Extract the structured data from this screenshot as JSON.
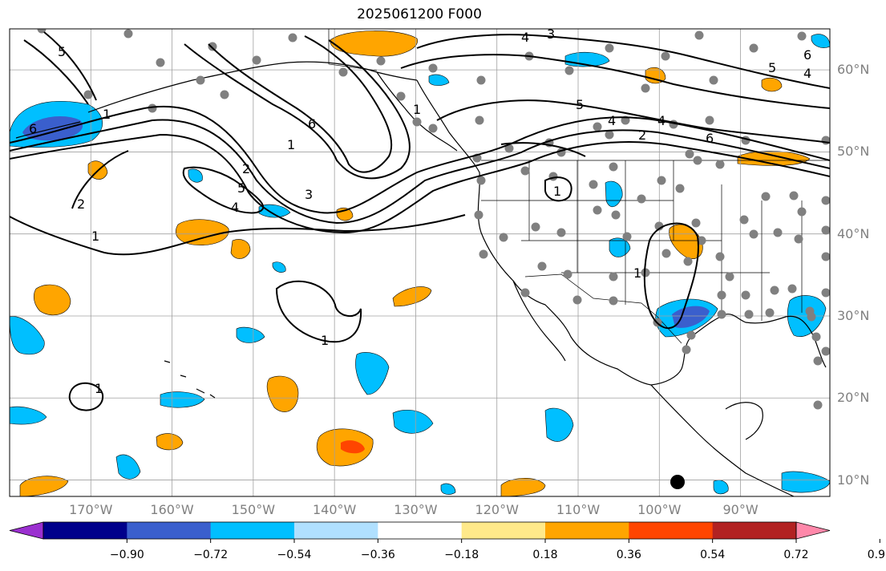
{
  "title": "2025061200 F000",
  "map": {
    "lon_range": [
      -180,
      -79
    ],
    "lat_range": [
      8,
      65
    ],
    "longitude_labels": [
      "170°W",
      "160°W",
      "150°W",
      "140°W",
      "130°W",
      "120°W",
      "110°W",
      "100°W",
      "90°W"
    ],
    "longitude_values": [
      -170,
      -160,
      -150,
      -140,
      -130,
      -120,
      -110,
      -100,
      -90
    ],
    "latitude_labels": [
      "60°N",
      "50°N",
      "40°N",
      "30°N",
      "20°N",
      "10°N"
    ],
    "latitude_values": [
      60,
      50,
      40,
      30,
      20,
      10
    ],
    "gridlines": true,
    "land_outline_color": "#000000",
    "grid_color": "#a0a0a0",
    "label_color": "#808080",
    "contour_labels": [
      "5",
      "4",
      "3",
      "6",
      "5",
      "4",
      "1",
      "6",
      "1",
      "2",
      "5",
      "3",
      "4",
      "2",
      "1",
      "1",
      "1",
      "2",
      "5",
      "4",
      "6",
      "6",
      "4",
      "1",
      "1",
      "1"
    ]
  },
  "colorbar": {
    "labels": [
      "−0.90",
      "−0.72",
      "−0.54",
      "−0.36",
      "−0.18",
      "0.18",
      "0.36",
      "0.54",
      "0.72",
      "0.90"
    ],
    "colors": [
      "#9b30d0",
      "#00008b",
      "#3a5fcd",
      "#00bfff",
      "#b0e0ff",
      "#ffffff",
      "#ffe98a",
      "#ffa500",
      "#ff4500",
      "#b22222",
      "#ff88aa"
    ],
    "extend": "both"
  }
}
